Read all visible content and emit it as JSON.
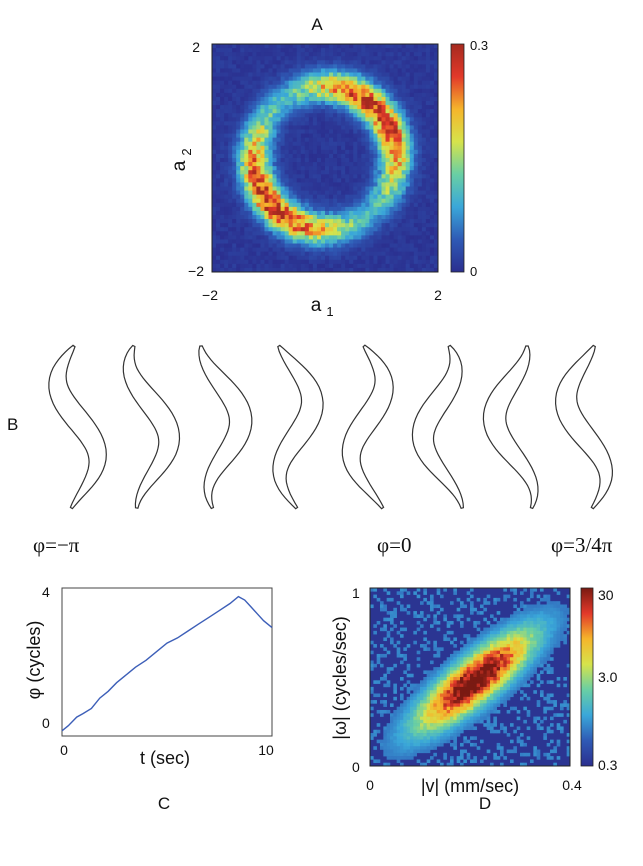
{
  "panels": {
    "A": "A",
    "B": "B",
    "C": "C",
    "D": "D"
  },
  "chart_data": [
    {
      "id": "A",
      "type": "heatmap",
      "description_free": true,
      "xlabel_main": "a",
      "xlabel_sub": "1",
      "ylabel_main": "a",
      "ylabel_sub": "2",
      "xlim": [
        -2,
        2
      ],
      "ylim": [
        -2,
        2
      ],
      "xticks": [
        "−2",
        "2"
      ],
      "yticks": [
        "−2",
        "2"
      ],
      "ring": {
        "radius": 1.25,
        "width": 0.28,
        "tilt_deg": 40
      },
      "colorbar": {
        "min": 0,
        "max": 0.3,
        "ticks": [
          "0",
          "0.3"
        ]
      },
      "colormap": [
        "#2b2f8f",
        "#2f5ab5",
        "#3aa7d9",
        "#69cfa4",
        "#d6e34b",
        "#f5b52b",
        "#e2392a",
        "#a52a1f"
      ]
    },
    {
      "id": "B",
      "type": "table",
      "shape_count": 8,
      "phase_labels": [
        "φ=−π",
        "φ=0",
        "φ=3/4π"
      ],
      "stroke": "#333333"
    },
    {
      "id": "C",
      "type": "line",
      "xlabel": "t (sec)",
      "ylabel": "φ (cycles)",
      "xlim": [
        0,
        10
      ],
      "ylim": [
        -0.2,
        4.1
      ],
      "xticks": [
        "0",
        "10"
      ],
      "yticks": [
        "0",
        "4"
      ],
      "line_color": "#3d5fb8",
      "series": [
        {
          "x": [
            0,
            0.3,
            0.7,
            1.0,
            1.4,
            1.8,
            2.2,
            2.6,
            3.0,
            3.5,
            4.0,
            4.5,
            5.0,
            5.5,
            6.0,
            6.5,
            7.0,
            7.5,
            8.0,
            8.4,
            8.7,
            9.0,
            9.3,
            9.6,
            10.0
          ],
          "y": [
            -0.05,
            0.1,
            0.35,
            0.45,
            0.6,
            0.9,
            1.1,
            1.35,
            1.55,
            1.8,
            2.0,
            2.25,
            2.5,
            2.65,
            2.85,
            3.05,
            3.25,
            3.45,
            3.65,
            3.85,
            3.75,
            3.55,
            3.35,
            3.15,
            2.95
          ]
        }
      ]
    },
    {
      "id": "D",
      "type": "heatmap",
      "xlabel": "|v| (mm/sec)",
      "ylabel": "|ω| (cycles/sec)",
      "xlim": [
        0,
        0.4
      ],
      "ylim": [
        0,
        1
      ],
      "xticks": [
        "0",
        "0.4"
      ],
      "yticks": [
        "0",
        "1"
      ],
      "log_scale": true,
      "colorbar": {
        "min": 0.3,
        "max": 30,
        "ticks": [
          "0.3",
          "3.0",
          "30"
        ]
      },
      "colormap": [
        "#2b2f8f",
        "#2f5ab5",
        "#3aa7d9",
        "#69cfa4",
        "#d6e34b",
        "#f5b52b",
        "#e2392a",
        "#7a1a12"
      ]
    }
  ]
}
